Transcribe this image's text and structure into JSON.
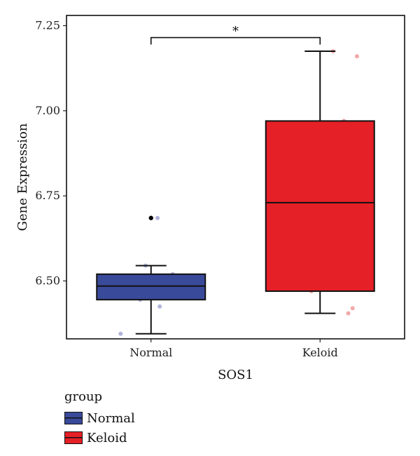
{
  "chart_data": {
    "type": "boxplot",
    "title": "",
    "xlabel": "SOS1",
    "ylabel": "Gene Expression",
    "ylim": [
      6.33,
      7.28
    ],
    "yticks": [
      6.5,
      6.75,
      7.0,
      7.25
    ],
    "ytick_labels": [
      "6.50",
      "6.75",
      "7.00",
      "7.25"
    ],
    "categories": [
      "Normal",
      "Keloid"
    ],
    "series": [
      {
        "name": "Normal",
        "color": "#3a4a9a",
        "point_color": "#a9add6",
        "whisker_low": 6.345,
        "q1": 6.445,
        "median": 6.485,
        "q3": 6.52,
        "whisker_high": 6.545,
        "outliers": [
          6.685
        ],
        "points": [
          6.345,
          6.425,
          6.445,
          6.52,
          6.545,
          6.685
        ]
      },
      {
        "name": "Keloid",
        "color": "#e62027",
        "point_color": "#f0a0a0",
        "whisker_low": 6.405,
        "q1": 6.47,
        "median": 6.73,
        "q3": 6.97,
        "whisker_high": 7.175,
        "outliers": [],
        "points": [
          6.405,
          6.42,
          6.47,
          6.97,
          7.16,
          7.175
        ]
      }
    ],
    "annotations": [
      {
        "text": "*",
        "type": "significance-bracket",
        "between": [
          "Normal",
          "Keloid"
        ],
        "y": 7.215
      }
    ],
    "grid": false,
    "legend": {
      "title": "group",
      "position": "bottom-left",
      "entries": [
        "Normal",
        "Keloid"
      ]
    }
  }
}
